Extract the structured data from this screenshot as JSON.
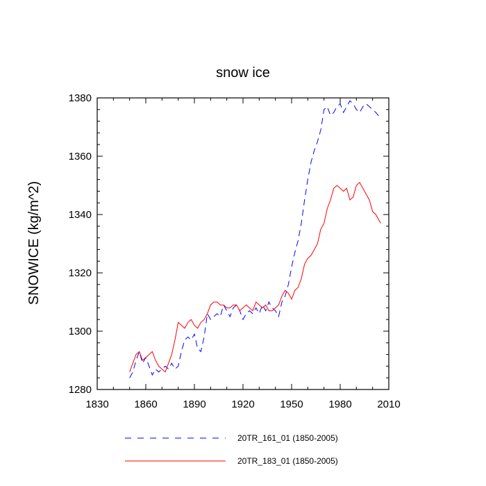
{
  "chart_data": {
    "type": "line",
    "title": "snow ice",
    "xlabel": "",
    "ylabel": "SNOWICE  (kg/m^2)",
    "xlim": [
      1830,
      2010
    ],
    "ylim": [
      1280,
      1380
    ],
    "x_ticks": [
      1830,
      1860,
      1890,
      1920,
      1950,
      1980,
      2010
    ],
    "y_ticks": [
      1280,
      1300,
      1320,
      1340,
      1360,
      1380
    ],
    "x_tick_labels": [
      "1830",
      "1860",
      "1890",
      "1920",
      "1950",
      "1980",
      "2010"
    ],
    "y_tick_labels": [
      "1280",
      "1300",
      "1320",
      "1340",
      "1360",
      "1380"
    ],
    "grid": false,
    "legend_position": "bottom",
    "series": [
      {
        "name": "20TR_161_01 (1850-2005)",
        "color": "#0000ff",
        "dash": "dashed",
        "x": [
          1850,
          1852,
          1854,
          1856,
          1858,
          1860,
          1862,
          1864,
          1866,
          1868,
          1870,
          1872,
          1874,
          1876,
          1878,
          1880,
          1882,
          1884,
          1886,
          1888,
          1890,
          1892,
          1894,
          1896,
          1898,
          1900,
          1902,
          1904,
          1906,
          1908,
          1910,
          1912,
          1914,
          1916,
          1918,
          1920,
          1922,
          1924,
          1926,
          1928,
          1930,
          1932,
          1934,
          1936,
          1938,
          1940,
          1942,
          1944,
          1946,
          1948,
          1950,
          1952,
          1954,
          1956,
          1958,
          1960,
          1962,
          1964,
          1966,
          1968,
          1970,
          1972,
          1974,
          1976,
          1978,
          1980,
          1982,
          1984,
          1986,
          1988,
          1990,
          1992,
          1994,
          1996,
          1998,
          2000,
          2002,
          2005
        ],
        "y": [
          1284,
          1286,
          1290,
          1293,
          1289,
          1291,
          1288,
          1285,
          1287,
          1286,
          1287,
          1288,
          1287,
          1289,
          1287,
          1288,
          1293,
          1297,
          1298,
          1297,
          1299,
          1294,
          1293,
          1298,
          1306,
          1304,
          1305,
          1306,
          1305,
          1309,
          1307,
          1305,
          1308,
          1309,
          1307,
          1304,
          1306,
          1307,
          1306,
          1308,
          1306,
          1309,
          1307,
          1310,
          1308,
          1307,
          1305,
          1310,
          1312,
          1316,
          1322,
          1327,
          1331,
          1337,
          1345,
          1352,
          1358,
          1362,
          1365,
          1369,
          1376,
          1377,
          1374,
          1375,
          1377,
          1378,
          1375,
          1377,
          1379,
          1378,
          1376,
          1375,
          1377,
          1378,
          1377,
          1376,
          1375,
          1373
        ],
        "x_compact": null
      },
      {
        "name": "20TR_183_01 (1850-2005)",
        "color": "#ff0000",
        "dash": "solid",
        "x": [
          1850,
          1852,
          1854,
          1856,
          1858,
          1860,
          1862,
          1864,
          1866,
          1868,
          1870,
          1872,
          1874,
          1876,
          1878,
          1880,
          1882,
          1884,
          1886,
          1888,
          1890,
          1892,
          1894,
          1896,
          1898,
          1900,
          1902,
          1904,
          1906,
          1908,
          1910,
          1912,
          1914,
          1916,
          1918,
          1920,
          1922,
          1924,
          1926,
          1928,
          1930,
          1932,
          1934,
          1936,
          1938,
          1940,
          1942,
          1944,
          1946,
          1948,
          1950,
          1952,
          1954,
          1956,
          1958,
          1960,
          1962,
          1964,
          1966,
          1968,
          1970,
          1972,
          1974,
          1976,
          1978,
          1980,
          1982,
          1984,
          1986,
          1988,
          1990,
          1992,
          1994,
          1996,
          1998,
          2000,
          2002,
          2005
        ],
        "y": [
          1286,
          1289,
          1292,
          1293,
          1290,
          1291,
          1292,
          1293,
          1290,
          1288,
          1287,
          1286,
          1289,
          1292,
          1297,
          1303,
          1302,
          1301,
          1303,
          1304,
          1302,
          1301,
          1303,
          1304,
          1306,
          1309,
          1310,
          1310,
          1309,
          1309,
          1308,
          1308,
          1309,
          1309,
          1307,
          1308,
          1309,
          1308,
          1307,
          1310,
          1309,
          1308,
          1309,
          1307,
          1307,
          1308,
          1309,
          1312,
          1314,
          1313,
          1311,
          1314,
          1315,
          1318,
          1323,
          1325,
          1326,
          1328,
          1330,
          1335,
          1337,
          1342,
          1345,
          1349,
          1350,
          1349,
          1348,
          1349,
          1345,
          1346,
          1350,
          1351,
          1349,
          1347,
          1345,
          1341,
          1340,
          1337
        ],
        "x_compact": null
      }
    ]
  }
}
